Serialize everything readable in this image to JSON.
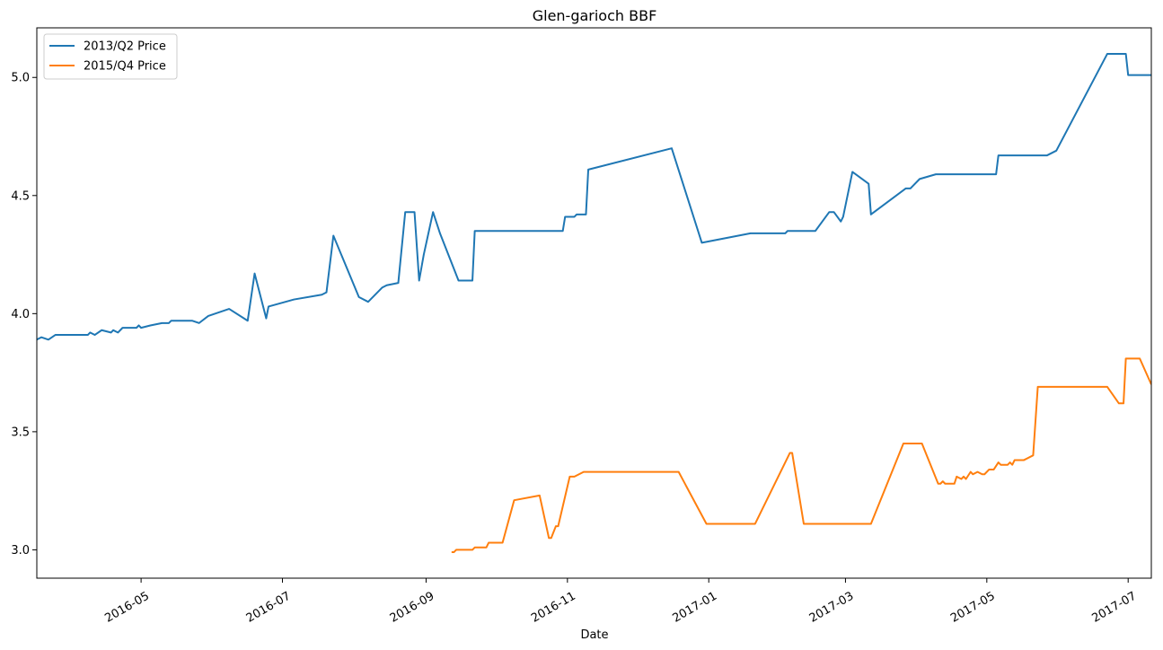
{
  "chart_data": {
    "type": "line",
    "title": "Glen-garioch BBF",
    "xlabel": "Date",
    "ylabel": "",
    "x_axis": "date",
    "xlim": [
      "2016-03-17",
      "2017-07-11"
    ],
    "ylim": [
      2.88,
      5.21
    ],
    "x_ticks": [
      "2016-05",
      "2016-07",
      "2016-09",
      "2016-11",
      "2017-01",
      "2017-03",
      "2017-05",
      "2017-07"
    ],
    "x_tick_dates": [
      "2016-05-01",
      "2016-07-01",
      "2016-09-01",
      "2016-11-01",
      "2017-01-01",
      "2017-03-01",
      "2017-05-01",
      "2017-07-01"
    ],
    "y_ticks": [
      "3.0",
      "3.5",
      "4.0",
      "4.5",
      "5.0"
    ],
    "y_tick_values": [
      3.0,
      3.5,
      4.0,
      4.5,
      5.0
    ],
    "grid": false,
    "legend_position": "top-left",
    "series": [
      {
        "name": "2013/Q2 Price",
        "color": "#1f77b4",
        "points": [
          [
            "2016-03-17",
            3.89
          ],
          [
            "2016-03-19",
            3.9
          ],
          [
            "2016-03-22",
            3.89
          ],
          [
            "2016-03-25",
            3.91
          ],
          [
            "2016-04-08",
            3.91
          ],
          [
            "2016-04-09",
            3.92
          ],
          [
            "2016-04-11",
            3.91
          ],
          [
            "2016-04-14",
            3.93
          ],
          [
            "2016-04-18",
            3.92
          ],
          [
            "2016-04-19",
            3.93
          ],
          [
            "2016-04-21",
            3.92
          ],
          [
            "2016-04-23",
            3.94
          ],
          [
            "2016-04-29",
            3.94
          ],
          [
            "2016-04-30",
            3.95
          ],
          [
            "2016-05-01",
            3.94
          ],
          [
            "2016-05-05",
            3.95
          ],
          [
            "2016-05-10",
            3.96
          ],
          [
            "2016-05-13",
            3.96
          ],
          [
            "2016-05-14",
            3.97
          ],
          [
            "2016-05-23",
            3.97
          ],
          [
            "2016-05-26",
            3.96
          ],
          [
            "2016-05-30",
            3.99
          ],
          [
            "2016-06-08",
            4.02
          ],
          [
            "2016-06-16",
            3.97
          ],
          [
            "2016-06-19",
            4.17
          ],
          [
            "2016-06-24",
            3.98
          ],
          [
            "2016-06-25",
            4.03
          ],
          [
            "2016-07-06",
            4.06
          ],
          [
            "2016-07-18",
            4.08
          ],
          [
            "2016-07-20",
            4.09
          ],
          [
            "2016-07-23",
            4.33
          ],
          [
            "2016-08-03",
            4.07
          ],
          [
            "2016-08-07",
            4.05
          ],
          [
            "2016-08-13",
            4.11
          ],
          [
            "2016-08-15",
            4.12
          ],
          [
            "2016-08-20",
            4.13
          ],
          [
            "2016-08-23",
            4.43
          ],
          [
            "2016-08-27",
            4.43
          ],
          [
            "2016-08-29",
            4.14
          ],
          [
            "2016-08-31",
            4.25
          ],
          [
            "2016-09-04",
            4.43
          ],
          [
            "2016-09-07",
            4.34
          ],
          [
            "2016-09-15",
            4.14
          ],
          [
            "2016-09-21",
            4.14
          ],
          [
            "2016-09-22",
            4.35
          ],
          [
            "2016-10-30",
            4.35
          ],
          [
            "2016-10-31",
            4.41
          ],
          [
            "2016-11-04",
            4.41
          ],
          [
            "2016-11-05",
            4.42
          ],
          [
            "2016-11-09",
            4.42
          ],
          [
            "2016-11-10",
            4.61
          ],
          [
            "2016-12-16",
            4.7
          ],
          [
            "2016-12-29",
            4.3
          ],
          [
            "2017-01-19",
            4.34
          ],
          [
            "2017-02-03",
            4.34
          ],
          [
            "2017-02-04",
            4.35
          ],
          [
            "2017-02-16",
            4.35
          ],
          [
            "2017-02-22",
            4.43
          ],
          [
            "2017-02-24",
            4.43
          ],
          [
            "2017-02-27",
            4.39
          ],
          [
            "2017-02-28",
            4.41
          ],
          [
            "2017-03-04",
            4.6
          ],
          [
            "2017-03-11",
            4.55
          ],
          [
            "2017-03-12",
            4.42
          ],
          [
            "2017-03-27",
            4.53
          ],
          [
            "2017-03-29",
            4.53
          ],
          [
            "2017-04-02",
            4.57
          ],
          [
            "2017-04-09",
            4.59
          ],
          [
            "2017-05-05",
            4.59
          ],
          [
            "2017-05-06",
            4.67
          ],
          [
            "2017-05-27",
            4.67
          ],
          [
            "2017-05-31",
            4.69
          ],
          [
            "2017-06-22",
            5.1
          ],
          [
            "2017-06-30",
            5.1
          ],
          [
            "2017-07-01",
            5.01
          ],
          [
            "2017-07-11",
            5.01
          ]
        ]
      },
      {
        "name": "2015/Q4 Price",
        "color": "#ff7f0e",
        "points": [
          [
            "2016-09-12",
            2.99
          ],
          [
            "2016-09-13",
            2.99
          ],
          [
            "2016-09-14",
            3.0
          ],
          [
            "2016-09-21",
            3.0
          ],
          [
            "2016-09-22",
            3.01
          ],
          [
            "2016-09-27",
            3.01
          ],
          [
            "2016-09-28",
            3.03
          ],
          [
            "2016-10-04",
            3.03
          ],
          [
            "2016-10-09",
            3.21
          ],
          [
            "2016-10-20",
            3.23
          ],
          [
            "2016-10-24",
            3.05
          ],
          [
            "2016-10-25",
            3.05
          ],
          [
            "2016-10-27",
            3.1
          ],
          [
            "2016-10-28",
            3.1
          ],
          [
            "2016-11-02",
            3.31
          ],
          [
            "2016-11-04",
            3.31
          ],
          [
            "2016-11-08",
            3.33
          ],
          [
            "2016-12-19",
            3.33
          ],
          [
            "2016-12-31",
            3.11
          ],
          [
            "2017-01-21",
            3.11
          ],
          [
            "2017-02-05",
            3.41
          ],
          [
            "2017-02-06",
            3.41
          ],
          [
            "2017-02-11",
            3.11
          ],
          [
            "2017-03-12",
            3.11
          ],
          [
            "2017-03-26",
            3.45
          ],
          [
            "2017-04-03",
            3.45
          ],
          [
            "2017-04-10",
            3.28
          ],
          [
            "2017-04-11",
            3.28
          ],
          [
            "2017-04-12",
            3.29
          ],
          [
            "2017-04-13",
            3.28
          ],
          [
            "2017-04-17",
            3.28
          ],
          [
            "2017-04-18",
            3.31
          ],
          [
            "2017-04-20",
            3.3
          ],
          [
            "2017-04-21",
            3.31
          ],
          [
            "2017-04-22",
            3.3
          ],
          [
            "2017-04-24",
            3.33
          ],
          [
            "2017-04-25",
            3.32
          ],
          [
            "2017-04-27",
            3.33
          ],
          [
            "2017-04-29",
            3.32
          ],
          [
            "2017-04-30",
            3.32
          ],
          [
            "2017-05-02",
            3.34
          ],
          [
            "2017-05-04",
            3.34
          ],
          [
            "2017-05-06",
            3.37
          ],
          [
            "2017-05-07",
            3.36
          ],
          [
            "2017-05-10",
            3.36
          ],
          [
            "2017-05-11",
            3.37
          ],
          [
            "2017-05-12",
            3.36
          ],
          [
            "2017-05-13",
            3.38
          ],
          [
            "2017-05-17",
            3.38
          ],
          [
            "2017-05-21",
            3.4
          ],
          [
            "2017-05-23",
            3.69
          ],
          [
            "2017-06-22",
            3.69
          ],
          [
            "2017-06-27",
            3.62
          ],
          [
            "2017-06-29",
            3.62
          ],
          [
            "2017-06-30",
            3.81
          ],
          [
            "2017-07-06",
            3.81
          ],
          [
            "2017-07-11",
            3.7
          ]
        ]
      }
    ]
  }
}
